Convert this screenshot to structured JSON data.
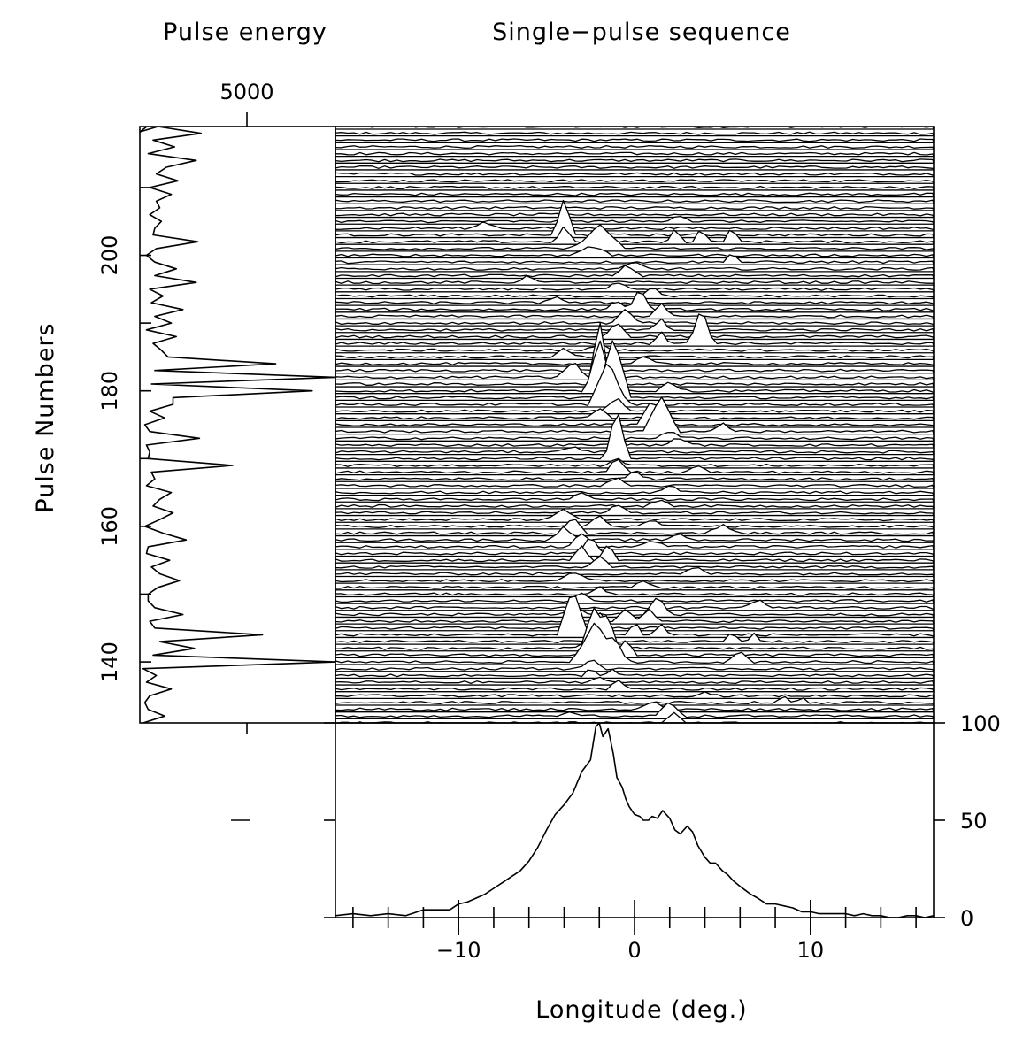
{
  "titles": {
    "energy": "Pulse energy",
    "sequence": "Single−pulse sequence"
  },
  "energy_axis": {
    "tick_label": "5000",
    "tick_value": 5000
  },
  "pulse_axis": {
    "label": "Pulse Numbers",
    "range": [
      131,
      219
    ],
    "ticks": [
      140,
      160,
      180,
      200
    ],
    "minor_step": 10
  },
  "longitude_axis": {
    "label": "Longitude (deg.)",
    "range": [
      -17,
      17
    ],
    "major_ticks": [
      -10,
      0,
      10
    ],
    "major_labels": [
      "−10",
      "0",
      "10"
    ],
    "minor_step": 2
  },
  "profile_axis": {
    "ticks": [
      0,
      50,
      100
    ],
    "range": [
      0,
      100
    ]
  },
  "chart_data": [
    {
      "name": "pulse-energy",
      "type": "line",
      "title": "Pulse energy",
      "ylabel": "Pulse Numbers",
      "xlim": [
        2000,
        7900
      ],
      "ylim": [
        131,
        219
      ],
      "x_ticks": [
        5000
      ],
      "y_ticks": [
        140,
        160,
        180,
        200
      ],
      "energy_by_pulse_from_131": [
        2100,
        2750,
        2250,
        2150,
        2300,
        2950,
        2200,
        2500,
        2100,
        7900,
        2400,
        3650,
        2600,
        5700,
        2450,
        2300,
        3300,
        2450,
        2250,
        2250,
        2550,
        3200,
        2600,
        2350,
        2900,
        2200,
        2250,
        3400,
        2700,
        2150,
        2600,
        3000,
        2400,
        2600,
        2950,
        2200,
        2450,
        2350,
        4800,
        2250,
        2300,
        2200,
        3800,
        2300,
        2150,
        2750,
        2300,
        3000,
        3000,
        7200,
        2350,
        7900,
        2450,
        6100,
        2850,
        2650,
        2400,
        3100,
        2200,
        2950,
        2450,
        3300,
        2350,
        2700,
        2300,
        3700,
        2450,
        3100,
        2450,
        2200,
        2500,
        3750,
        2400,
        2450,
        2650,
        2300,
        2600,
        2500,
        2950,
        2300,
        3150,
        2500,
        2800,
        3700,
        2250,
        3050,
        2400,
        3850,
        2550
      ],
      "top_edge_note": ""
    },
    {
      "name": "single-pulse-sequence",
      "type": "line",
      "title": "Single−pulse sequence",
      "xlabel": "Longitude (deg.)",
      "ylabel": "Pulse Numbers",
      "xlim": [
        -17,
        17
      ],
      "ylim": [
        131,
        219
      ],
      "trace_count": 89,
      "first_pulse": 131,
      "trace_offset_units": 2.55,
      "note_units": "component heights in units of the trace spacing",
      "components": [
        {
          "pulse": 131,
          "lon": 2.3,
          "amp": 1.5,
          "w": 0.7
        },
        {
          "pulse": 132,
          "lon": 2.0,
          "amp": 2.3,
          "w": 0.8
        },
        {
          "pulse": 132,
          "lon": -3.5,
          "amp": 0.6,
          "w": 0.8
        },
        {
          "pulse": 133,
          "lon": 1.0,
          "amp": 1.2,
          "w": 0.8
        },
        {
          "pulse": 134,
          "lon": 8.5,
          "amp": 0.8,
          "w": 0.5
        },
        {
          "pulse": 134,
          "lon": 9.5,
          "amp": 0.8,
          "w": 0.4
        },
        {
          "pulse": 135,
          "lon": 4.0,
          "amp": 0.5,
          "w": 0.8
        },
        {
          "pulse": 136,
          "lon": -1.0,
          "amp": 1.5,
          "w": 0.6
        },
        {
          "pulse": 137,
          "lon": -2.0,
          "amp": 1.0,
          "w": 0.6
        },
        {
          "pulse": 138,
          "lon": -2.5,
          "amp": 1.0,
          "w": 0.5
        },
        {
          "pulse": 138,
          "lon": -1.3,
          "amp": 1.1,
          "w": 0.5
        },
        {
          "pulse": 139,
          "lon": -2.5,
          "amp": 1.5,
          "w": 0.7
        },
        {
          "pulse": 140,
          "lon": -2.2,
          "amp": 6.0,
          "w": 1.4
        },
        {
          "pulse": 140,
          "lon": -1.0,
          "amp": 2.5,
          "w": 0.6
        },
        {
          "pulse": 140,
          "lon": 6.0,
          "amp": 1.6,
          "w": 0.7
        },
        {
          "pulse": 141,
          "lon": -0.5,
          "amp": 2.5,
          "w": 0.6
        },
        {
          "pulse": 142,
          "lon": -2.3,
          "amp": 6.0,
          "w": 0.8
        },
        {
          "pulse": 142,
          "lon": -1.5,
          "amp": 5.0,
          "w": 0.6
        },
        {
          "pulse": 143,
          "lon": 5.5,
          "amp": 1.4,
          "w": 0.5
        },
        {
          "pulse": 143,
          "lon": 6.8,
          "amp": 1.4,
          "w": 0.4
        },
        {
          "pulse": 144,
          "lon": -3.5,
          "amp": 7.0,
          "w": 0.9
        },
        {
          "pulse": 144,
          "lon": 0.0,
          "amp": 2.0,
          "w": 0.5
        },
        {
          "pulse": 144,
          "lon": 1.5,
          "amp": 1.8,
          "w": 0.5
        },
        {
          "pulse": 145,
          "lon": -2.0,
          "amp": 2.5,
          "w": 0.7
        },
        {
          "pulse": 146,
          "lon": -0.5,
          "amp": 2.0,
          "w": 0.8
        },
        {
          "pulse": 146,
          "lon": 0.8,
          "amp": 1.8,
          "w": 0.6
        },
        {
          "pulse": 147,
          "lon": 1.3,
          "amp": 2.8,
          "w": 0.8
        },
        {
          "pulse": 147,
          "lon": -3.5,
          "amp": 2.0,
          "w": 0.7
        },
        {
          "pulse": 148,
          "lon": 7.0,
          "amp": 1.4,
          "w": 0.7
        },
        {
          "pulse": 149,
          "lon": -3.0,
          "amp": 1.2,
          "w": 0.8
        },
        {
          "pulse": 150,
          "lon": -2.0,
          "amp": 1.0,
          "w": 0.8
        },
        {
          "pulse": 151,
          "lon": 0.5,
          "amp": 0.8,
          "w": 0.8
        },
        {
          "pulse": 152,
          "lon": -3.5,
          "amp": 1.2,
          "w": 1.0
        },
        {
          "pulse": 153,
          "lon": 3.5,
          "amp": 1.0,
          "w": 0.8
        },
        {
          "pulse": 154,
          "lon": -2.0,
          "amp": 1.5,
          "w": 0.8
        },
        {
          "pulse": 155,
          "lon": -1.5,
          "amp": 2.5,
          "w": 0.6
        },
        {
          "pulse": 155,
          "lon": -3.0,
          "amp": 2.0,
          "w": 0.7
        },
        {
          "pulse": 156,
          "lon": -2.5,
          "amp": 2.5,
          "w": 0.7
        },
        {
          "pulse": 157,
          "lon": -3.0,
          "amp": 2.0,
          "w": 0.8
        },
        {
          "pulse": 157,
          "lon": 1.0,
          "amp": 1.0,
          "w": 0.8
        },
        {
          "pulse": 158,
          "lon": -4.0,
          "amp": 2.0,
          "w": 0.8
        },
        {
          "pulse": 158,
          "lon": 2.5,
          "amp": 1.0,
          "w": 0.8
        },
        {
          "pulse": 159,
          "lon": -3.5,
          "amp": 2.5,
          "w": 0.8
        },
        {
          "pulse": 159,
          "lon": 5.0,
          "amp": 1.2,
          "w": 0.9
        },
        {
          "pulse": 160,
          "lon": -2.0,
          "amp": 1.5,
          "w": 0.8
        },
        {
          "pulse": 160,
          "lon": 1.0,
          "amp": 1.0,
          "w": 0.8
        },
        {
          "pulse": 161,
          "lon": -4.0,
          "amp": 1.5,
          "w": 0.9
        },
        {
          "pulse": 162,
          "lon": -1.0,
          "amp": 1.2,
          "w": 0.8
        },
        {
          "pulse": 163,
          "lon": 1.5,
          "amp": 1.0,
          "w": 0.8
        },
        {
          "pulse": 164,
          "lon": -3.0,
          "amp": 1.0,
          "w": 0.8
        },
        {
          "pulse": 165,
          "lon": 2.0,
          "amp": 1.0,
          "w": 0.8
        },
        {
          "pulse": 166,
          "lon": -1.0,
          "amp": 1.2,
          "w": 0.8
        },
        {
          "pulse": 167,
          "lon": 0.0,
          "amp": 1.5,
          "w": 0.6
        },
        {
          "pulse": 168,
          "lon": -1.0,
          "amp": 2.0,
          "w": 0.7
        },
        {
          "pulse": 168,
          "lon": 3.5,
          "amp": 1.0,
          "w": 0.8
        },
        {
          "pulse": 169,
          "lon": -1.0,
          "amp": 1.2,
          "w": 0.7
        },
        {
          "pulse": 170,
          "lon": -1.0,
          "amp": 7.5,
          "w": 0.7
        },
        {
          "pulse": 171,
          "lon": -3.5,
          "amp": 1.0,
          "w": 0.8
        },
        {
          "pulse": 172,
          "lon": 2.5,
          "amp": 1.2,
          "w": 0.8
        },
        {
          "pulse": 173,
          "lon": 2.0,
          "amp": 1.0,
          "w": 0.8
        },
        {
          "pulse": 174,
          "lon": 1.5,
          "amp": 5.5,
          "w": 1.0
        },
        {
          "pulse": 174,
          "lon": 5.0,
          "amp": 1.2,
          "w": 0.8
        },
        {
          "pulse": 175,
          "lon": 1.0,
          "amp": 4.0,
          "w": 0.8
        },
        {
          "pulse": 176,
          "lon": -2.0,
          "amp": 1.5,
          "w": 0.8
        },
        {
          "pulse": 177,
          "lon": -1.0,
          "amp": 2.0,
          "w": 0.8
        },
        {
          "pulse": 178,
          "lon": -1.5,
          "amp": 6.5,
          "w": 1.1
        },
        {
          "pulse": 179,
          "lon": -1.2,
          "amp": 9.0,
          "w": 1.0
        },
        {
          "pulse": 180,
          "lon": -2.0,
          "amp": 8.0,
          "w": 0.8
        },
        {
          "pulse": 180,
          "lon": 2.0,
          "amp": 1.5,
          "w": 0.8
        },
        {
          "pulse": 181,
          "lon": -2.0,
          "amp": 10.0,
          "w": 0.6
        },
        {
          "pulse": 182,
          "lon": -3.5,
          "amp": 2.5,
          "w": 0.8
        },
        {
          "pulse": 183,
          "lon": -1.5,
          "amp": 1.5,
          "w": 0.8
        },
        {
          "pulse": 184,
          "lon": 0.5,
          "amp": 1.0,
          "w": 0.8
        },
        {
          "pulse": 185,
          "lon": -4.0,
          "amp": 1.2,
          "w": 0.8
        },
        {
          "pulse": 186,
          "lon": -2.0,
          "amp": 1.0,
          "w": 0.8
        },
        {
          "pulse": 187,
          "lon": 3.8,
          "amp": 5.5,
          "w": 0.7
        },
        {
          "pulse": 187,
          "lon": 1.5,
          "amp": 2.0,
          "w": 0.5
        },
        {
          "pulse": 188,
          "lon": -1.0,
          "amp": 2.0,
          "w": 0.8
        },
        {
          "pulse": 189,
          "lon": 1.5,
          "amp": 2.0,
          "w": 0.5
        },
        {
          "pulse": 190,
          "lon": -0.5,
          "amp": 2.0,
          "w": 0.8
        },
        {
          "pulse": 191,
          "lon": 1.5,
          "amp": 2.0,
          "w": 0.6
        },
        {
          "pulse": 192,
          "lon": 0.3,
          "amp": 3.0,
          "w": 0.7
        },
        {
          "pulse": 192,
          "lon": -1.0,
          "amp": 1.2,
          "w": 0.8
        },
        {
          "pulse": 193,
          "lon": -4.5,
          "amp": 1.0,
          "w": 0.8
        },
        {
          "pulse": 194,
          "lon": 1.0,
          "amp": 1.2,
          "w": 0.8
        },
        {
          "pulse": 195,
          "lon": -1.0,
          "amp": 1.0,
          "w": 0.8
        },
        {
          "pulse": 196,
          "lon": -6.0,
          "amp": 1.0,
          "w": 0.8
        },
        {
          "pulse": 197,
          "lon": -0.5,
          "amp": 1.5,
          "w": 0.8
        },
        {
          "pulse": 198,
          "lon": 0.0,
          "amp": 1.0,
          "w": 0.8
        },
        {
          "pulse": 199,
          "lon": 5.5,
          "amp": 1.5,
          "w": 0.5
        },
        {
          "pulse": 200,
          "lon": -2.5,
          "amp": 1.5,
          "w": 1.2
        },
        {
          "pulse": 201,
          "lon": -2.0,
          "amp": 3.5,
          "w": 1.5
        },
        {
          "pulse": 202,
          "lon": -4.0,
          "amp": 2.5,
          "w": 0.5
        },
        {
          "pulse": 202,
          "lon": 2.3,
          "amp": 2.0,
          "w": 0.5
        },
        {
          "pulse": 202,
          "lon": 3.8,
          "amp": 2.0,
          "w": 0.5
        },
        {
          "pulse": 202,
          "lon": 5.5,
          "amp": 2.0,
          "w": 0.5
        },
        {
          "pulse": 203,
          "lon": -4.0,
          "amp": 5.5,
          "w": 0.6
        },
        {
          "pulse": 204,
          "lon": -8.5,
          "amp": 1.0,
          "w": 0.8
        },
        {
          "pulse": 205,
          "lon": 2.5,
          "amp": 1.0,
          "w": 0.8
        }
      ],
      "noise_amplitude": 0.18
    },
    {
      "name": "integrated-profile",
      "type": "line",
      "xlabel": "Longitude (deg.)",
      "xlim": [
        -17,
        17
      ],
      "ylim": [
        0,
        100
      ],
      "y_ticks": [
        0,
        50,
        100
      ],
      "x": [
        -17,
        -16,
        -15,
        -14,
        -13,
        -12,
        -11,
        -10.5,
        -10,
        -9.5,
        -9,
        -8.5,
        -8,
        -7.5,
        -7,
        -6.5,
        -6,
        -5.5,
        -5,
        -4.5,
        -4,
        -3.5,
        -3,
        -2.5,
        -2.2,
        -2,
        -1.8,
        -1.5,
        -1.2,
        -1,
        -0.7,
        -0.5,
        -0.3,
        0,
        0.3,
        0.5,
        0.8,
        1,
        1.3,
        1.6,
        2,
        2.3,
        2.6,
        3,
        3.3,
        3.6,
        4,
        4.3,
        4.6,
        5,
        5.3,
        5.6,
        6,
        6.3,
        6.6,
        7,
        7.5,
        8,
        8.5,
        9,
        9.5,
        10,
        10.5,
        11,
        11.5,
        12,
        12.5,
        13,
        13.5,
        14,
        14.5,
        15,
        15.5,
        16,
        16.5,
        17
      ],
      "y": [
        1,
        2,
        1,
        2,
        1,
        4,
        4,
        4,
        7,
        8,
        10,
        12,
        15,
        18,
        21,
        24,
        29,
        36,
        45,
        53,
        58,
        64,
        75,
        81,
        98,
        100,
        93,
        97,
        84,
        72,
        67,
        61,
        57,
        53,
        52,
        50,
        50,
        52,
        51,
        55,
        51,
        45,
        43,
        47,
        44,
        37,
        31,
        28,
        28,
        24,
        22,
        19,
        16,
        14,
        12,
        10,
        7,
        7,
        6,
        5,
        3,
        3,
        2,
        2,
        2,
        2,
        1,
        2,
        1,
        1,
        0,
        0,
        1,
        1,
        0,
        1
      ]
    }
  ]
}
